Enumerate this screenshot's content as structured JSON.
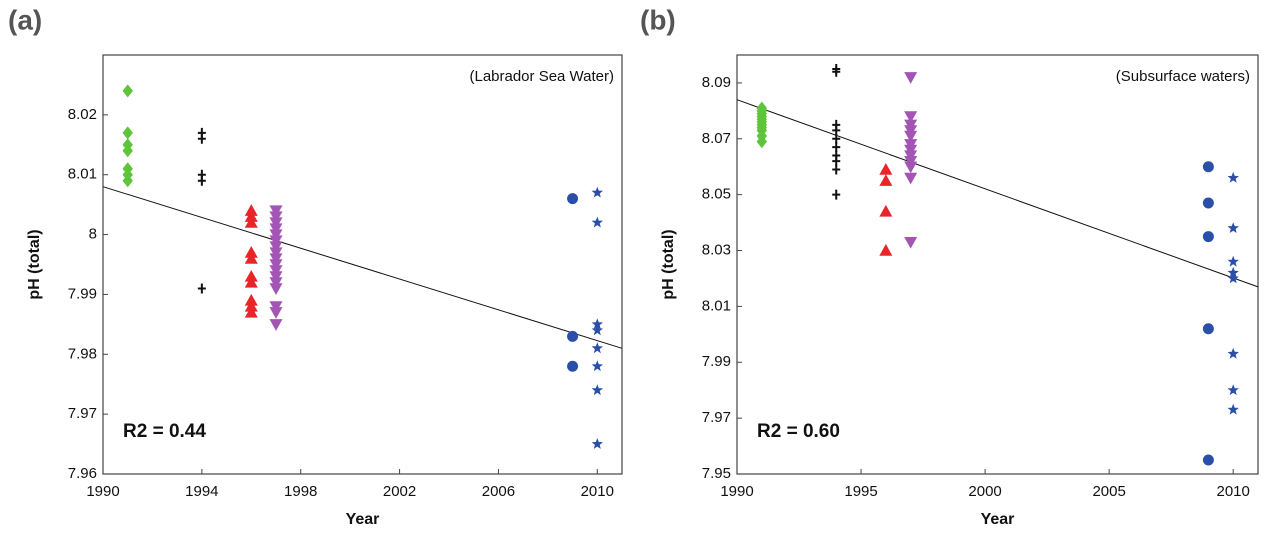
{
  "chart_data": [
    {
      "type": "scatter",
      "panel_label": "(a)",
      "annotation": "(Labrador Sea Water)",
      "r2_label": "R2 = 0.44",
      "xlabel": "Year",
      "ylabel": "pH (total)",
      "xlim": [
        1990,
        2011
      ],
      "ylim": [
        7.96,
        8.03
      ],
      "xticks": [
        1990,
        1994,
        1998,
        2002,
        2006,
        2010
      ],
      "yticks": [
        7.96,
        7.97,
        7.98,
        7.99,
        8,
        8.01,
        8.02
      ],
      "series": [
        {
          "color": "#5ec43a",
          "marker": "diamond",
          "x": [
            1991,
            1991,
            1991,
            1991,
            1991,
            1991,
            1991
          ],
          "values": [
            8.024,
            8.017,
            8.015,
            8.014,
            8.011,
            8.01,
            8.009
          ]
        },
        {
          "color": "#111111",
          "marker": "plus",
          "x": [
            1994,
            1994,
            1994,
            1994,
            1994
          ],
          "values": [
            8.017,
            8.016,
            8.01,
            8.009,
            7.991
          ]
        },
        {
          "color": "#e8262a",
          "marker": "triangle-up",
          "x": [
            1996,
            1996,
            1996,
            1996,
            1996,
            1996,
            1996,
            1996,
            1996,
            1996
          ],
          "values": [
            8.004,
            8.003,
            8.002,
            7.997,
            7.996,
            7.993,
            7.992,
            7.989,
            7.988,
            7.987
          ]
        },
        {
          "color": "#a355b5",
          "marker": "triangle-down",
          "x": [
            1997,
            1997,
            1997,
            1997,
            1997,
            1997,
            1997,
            1997,
            1997,
            1997,
            1997,
            1997,
            1997,
            1997,
            1997,
            1997,
            1997
          ],
          "values": [
            8.004,
            8.003,
            8.002,
            8.001,
            8,
            7.999,
            7.998,
            7.997,
            7.996,
            7.995,
            7.994,
            7.993,
            7.992,
            7.991,
            7.988,
            7.987,
            7.985
          ]
        },
        {
          "color": "#2a4fa8",
          "marker": "circle",
          "x": [
            2009,
            2009,
            2009
          ],
          "values": [
            8.006,
            7.983,
            7.978
          ]
        },
        {
          "color": "#2a4fa8",
          "marker": "star",
          "x": [
            2010,
            2010,
            2010,
            2010,
            2010,
            2010,
            2010,
            2010
          ],
          "values": [
            8.007,
            8.002,
            7.985,
            7.984,
            7.981,
            7.978,
            7.974,
            7.965
          ]
        }
      ],
      "trend": {
        "color": "#111111",
        "x": [
          1990,
          2011
        ],
        "values": [
          8.008,
          7.981
        ]
      }
    },
    {
      "type": "scatter",
      "panel_label": "(b)",
      "annotation": "(Subsurface waters)",
      "r2_label": "R2 = 0.60",
      "xlabel": "Year",
      "ylabel": "pH (total)",
      "xlim": [
        1990,
        2011
      ],
      "ylim": [
        7.95,
        8.1
      ],
      "xticks": [
        1990,
        1995,
        2000,
        2005,
        2010
      ],
      "yticks": [
        7.95,
        7.97,
        7.99,
        8.01,
        8.03,
        8.05,
        8.07,
        8.09
      ],
      "series": [
        {
          "color": "#5ec43a",
          "marker": "diamond",
          "x": [
            1991,
            1991,
            1991,
            1991,
            1991,
            1991,
            1991,
            1991,
            1991,
            1991,
            1991
          ],
          "values": [
            8.081,
            8.08,
            8.079,
            8.078,
            8.077,
            8.076,
            8.075,
            8.074,
            8.073,
            8.071,
            8.069
          ]
        },
        {
          "color": "#111111",
          "marker": "plus",
          "x": [
            1994,
            1994,
            1994,
            1994,
            1994,
            1994,
            1994,
            1994,
            1994,
            1994
          ],
          "values": [
            8.095,
            8.094,
            8.075,
            8.073,
            8.07,
            8.067,
            8.064,
            8.062,
            8.059,
            8.05
          ]
        },
        {
          "color": "#e8262a",
          "marker": "triangle-up",
          "x": [
            1996,
            1996,
            1996,
            1996
          ],
          "values": [
            8.059,
            8.055,
            8.044,
            8.03
          ]
        },
        {
          "color": "#a355b5",
          "marker": "triangle-down",
          "x": [
            1997,
            1997,
            1997,
            1997,
            1997,
            1997,
            1997,
            1997,
            1997,
            1997,
            1997,
            1997
          ],
          "values": [
            8.092,
            8.078,
            8.075,
            8.073,
            8.071,
            8.068,
            8.066,
            8.064,
            8.062,
            8.06,
            8.056,
            8.033
          ]
        },
        {
          "color": "#2a4fa8",
          "marker": "circle",
          "x": [
            2009,
            2009,
            2009,
            2009,
            2009
          ],
          "values": [
            8.06,
            8.047,
            8.035,
            8.002,
            7.955
          ]
        },
        {
          "color": "#2a4fa8",
          "marker": "star",
          "x": [
            2010,
            2010,
            2010,
            2010,
            2010,
            2010,
            2010,
            2010
          ],
          "values": [
            8.056,
            8.038,
            8.026,
            8.022,
            8.02,
            7.993,
            7.98,
            7.973
          ]
        }
      ],
      "trend": {
        "color": "#111111",
        "x": [
          1990,
          2011
        ],
        "values": [
          8.084,
          8.017
        ]
      }
    }
  ]
}
